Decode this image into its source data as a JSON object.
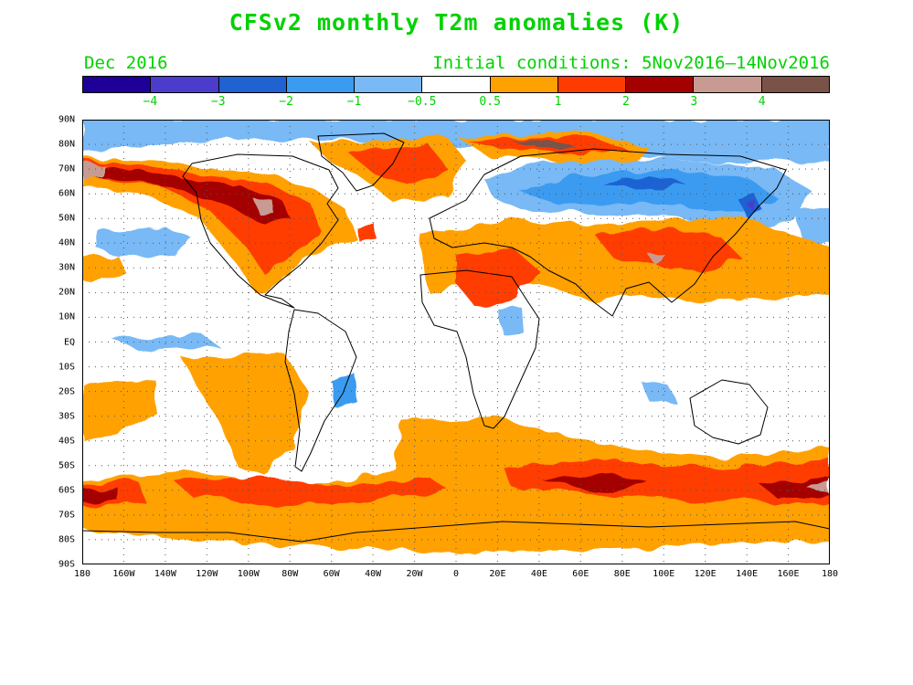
{
  "title": "CFSv2 monthly T2m anomalies (K)",
  "period": "Dec 2016",
  "initial_conditions": "Initial conditions: 5Nov2016–14Nov2016",
  "colorbar": {
    "colors": [
      "#1e0098",
      "#4b3ccc",
      "#1f62d2",
      "#3b9bf0",
      "#78b9f6",
      "#ffffff",
      "#ffa100",
      "#ff3c00",
      "#a40000",
      "#c89b92",
      "#7a5348"
    ],
    "labels": [
      "−4",
      "−3",
      "−2",
      "−1",
      "−0.5",
      "0.5",
      "1",
      "2",
      "3",
      "4"
    ]
  },
  "map": {
    "lat_labels": [
      "90N",
      "80N",
      "70N",
      "60N",
      "50N",
      "40N",
      "30N",
      "20N",
      "10N",
      "EQ",
      "10S",
      "20S",
      "30S",
      "40S",
      "50S",
      "60S",
      "70S",
      "80S",
      "90S"
    ],
    "lon_labels": [
      "180",
      "160W",
      "140W",
      "120W",
      "100W",
      "80W",
      "60W",
      "40W",
      "20W",
      "0",
      "20E",
      "40E",
      "60E",
      "80E",
      "100E",
      "120E",
      "140E",
      "160E",
      "180"
    ]
  }
}
